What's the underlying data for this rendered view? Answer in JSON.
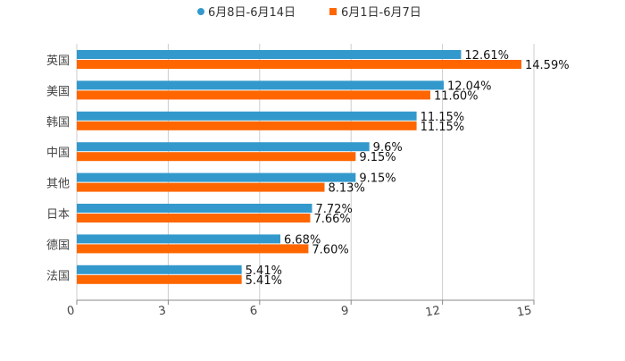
{
  "chart_data": {
    "type": "bar",
    "orientation": "horizontal",
    "title": "",
    "xlabel": "",
    "ylabel": "",
    "xlim": [
      0,
      15
    ],
    "x_ticks": [
      "0",
      "3",
      "6",
      "9",
      "12",
      "15"
    ],
    "grid": true,
    "legend_position": "top-center",
    "categories": [
      "英国",
      "美国",
      "韩国",
      "中国",
      "其他",
      "日本",
      "德国",
      "法国"
    ],
    "series": [
      {
        "name": "6月8日-6月14日",
        "color": "#3399cc",
        "values": [
          12.61,
          12.04,
          11.15,
          9.6,
          9.15,
          7.72,
          6.68,
          5.41
        ],
        "labels": [
          "12.61%",
          "12.04%",
          "11.15%",
          "9.6%",
          "9.15%",
          "7.72%",
          "6.68%",
          "5.41%"
        ]
      },
      {
        "name": "6月1日-6月7日",
        "color": "#ff6600",
        "values": [
          14.59,
          11.6,
          11.15,
          9.15,
          8.13,
          7.66,
          7.6,
          5.41
        ],
        "labels": [
          "14.59%",
          "11.60%",
          "11.15%",
          "9.15%",
          "8.13%",
          "7.66%",
          "7.60%",
          "5.41%"
        ]
      }
    ]
  }
}
